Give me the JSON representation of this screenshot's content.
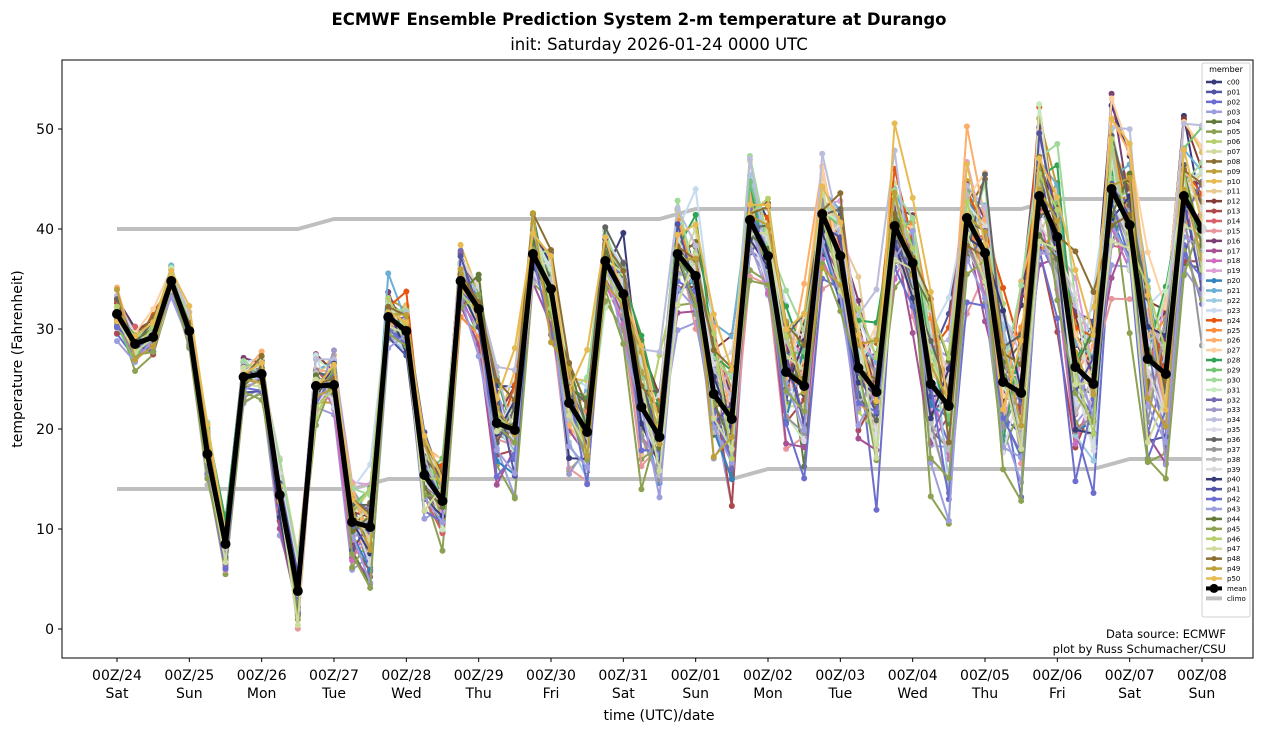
{
  "chart_data": {
    "type": "line",
    "title": "ECMWF Ensemble Prediction System 2-m temperature at Durango",
    "subtitle": "init: Saturday 2026-01-24 0000 UTC",
    "xlabel": "time (UTC)/date",
    "ylabel": "temperature (Fahrenheit)",
    "ylim": [
      -3,
      57
    ],
    "yticks": [
      0,
      10,
      20,
      30,
      40,
      50
    ],
    "xlim_hours": [
      -36,
      360
    ],
    "xticks": [
      {
        "hour": 0,
        "line1": "00Z/24",
        "line2": "Sat"
      },
      {
        "hour": 24,
        "line1": "00Z/25",
        "line2": "Sun"
      },
      {
        "hour": 48,
        "line1": "00Z/26",
        "line2": "Mon"
      },
      {
        "hour": 72,
        "line1": "00Z/27",
        "line2": "Tue"
      },
      {
        "hour": 96,
        "line1": "00Z/28",
        "line2": "Wed"
      },
      {
        "hour": 120,
        "line1": "00Z/29",
        "line2": "Thu"
      },
      {
        "hour": 144,
        "line1": "00Z/30",
        "line2": "Fri"
      },
      {
        "hour": 168,
        "line1": "00Z/31",
        "line2": "Sat"
      },
      {
        "hour": 192,
        "line1": "00Z/01",
        "line2": "Sun"
      },
      {
        "hour": 216,
        "line1": "00Z/02",
        "line2": "Mon"
      },
      {
        "hour": 240,
        "line1": "00Z/03",
        "line2": "Tue"
      },
      {
        "hour": 264,
        "line1": "00Z/04",
        "line2": "Wed"
      },
      {
        "hour": 288,
        "line1": "00Z/05",
        "line2": "Thu"
      },
      {
        "hour": 312,
        "line1": "00Z/06",
        "line2": "Fri"
      },
      {
        "hour": 336,
        "line1": "00Z/07",
        "line2": "Sat"
      },
      {
        "hour": 360,
        "line1": "00Z/08",
        "line2": "Sun"
      }
    ],
    "time_step_hours": 6,
    "mean": [
      31.5,
      28.5,
      29.2,
      34.8,
      29.8,
      17.5,
      8.5,
      25.2,
      25.5,
      13.4,
      3.8,
      24.3,
      24.4,
      10.7,
      10.2,
      31.2,
      29.8,
      15.4,
      12.8,
      34.8,
      32.0,
      20.6,
      19.9,
      37.5,
      34.0,
      22.6,
      19.7,
      36.8,
      33.5,
      22.2,
      19.2,
      37.5,
      35.3,
      23.5,
      21.0,
      40.9,
      37.3,
      25.7,
      24.3,
      41.5,
      37.3,
      26.1,
      23.7,
      40.3,
      36.6,
      24.5,
      22.3,
      41.1,
      37.6,
      24.7,
      23.6,
      43.3,
      39.2,
      26.2,
      24.5,
      44.0,
      40.4,
      27.0,
      25.5,
      43.3,
      40.0
    ],
    "spread": [
      1.4,
      1.2,
      1.2,
      0.8,
      1.2,
      2.0,
      1.5,
      1.2,
      1.2,
      1.8,
      2.2,
      2.0,
      2.0,
      3.0,
      3.2,
      1.8,
      1.8,
      2.4,
      2.6,
      2.2,
      2.3,
      3.0,
      3.4,
      2.5,
      2.6,
      3.4,
      3.6,
      2.8,
      2.8,
      4.0,
      4.2,
      3.0,
      3.2,
      4.4,
      4.6,
      3.2,
      3.2,
      4.6,
      4.8,
      3.4,
      3.6,
      4.8,
      5.0,
      4.0,
      4.0,
      5.2,
      5.4,
      4.2,
      4.4,
      5.6,
      5.8,
      4.6,
      4.6,
      6.0,
      6.0,
      4.8,
      5.0,
      6.0,
      6.2,
      5.2,
      5.2
    ],
    "climo_high": [
      40,
      40,
      40,
      40,
      40,
      40,
      40,
      40,
      40,
      40,
      40,
      40.5,
      41,
      41,
      41,
      41,
      41,
      41,
      41,
      41,
      41,
      41,
      41,
      41,
      41,
      41,
      41,
      41,
      41,
      41,
      41,
      41.5,
      42,
      42,
      42,
      42,
      42,
      42,
      42,
      42,
      42,
      42,
      42,
      42,
      42,
      42,
      42,
      42,
      42,
      42,
      42,
      42.5,
      43,
      43,
      43,
      43,
      43,
      43,
      43,
      43,
      43
    ],
    "climo_low": [
      14,
      14,
      14,
      14,
      14,
      14,
      14,
      14,
      14,
      14,
      14,
      14,
      14,
      14,
      14.5,
      15,
      15,
      15,
      15,
      15,
      15,
      15,
      15,
      15,
      15,
      15,
      15,
      15,
      15,
      15,
      15,
      15,
      15,
      15,
      15,
      15.5,
      16,
      16,
      16,
      16,
      16,
      16,
      16,
      16,
      16,
      16,
      16,
      16,
      16,
      16,
      16,
      16,
      16,
      16,
      16,
      16.5,
      17,
      17,
      17,
      17,
      17
    ],
    "legend": {
      "title": "member",
      "placement": "right",
      "entries": [
        {
          "name": "c00",
          "color": "#393b79"
        },
        {
          "name": "p01",
          "color": "#5254a3"
        },
        {
          "name": "p02",
          "color": "#6b6ecf"
        },
        {
          "name": "p03",
          "color": "#9c9ede"
        },
        {
          "name": "p04",
          "color": "#637939"
        },
        {
          "name": "p05",
          "color": "#8ca252"
        },
        {
          "name": "p06",
          "color": "#b5cf6b"
        },
        {
          "name": "p07",
          "color": "#cedb9c"
        },
        {
          "name": "p08",
          "color": "#8c6d31"
        },
        {
          "name": "p09",
          "color": "#bd9e39"
        },
        {
          "name": "p10",
          "color": "#e7ba52"
        },
        {
          "name": "p11",
          "color": "#e7cb94"
        },
        {
          "name": "p12",
          "color": "#843c39"
        },
        {
          "name": "p13",
          "color": "#ad494a"
        },
        {
          "name": "p14",
          "color": "#d6616b"
        },
        {
          "name": "p15",
          "color": "#e7969c"
        },
        {
          "name": "p16",
          "color": "#7b4173"
        },
        {
          "name": "p17",
          "color": "#a55194"
        },
        {
          "name": "p18",
          "color": "#ce6dbd"
        },
        {
          "name": "p19",
          "color": "#de9ed6"
        },
        {
          "name": "p20",
          "color": "#3182bd"
        },
        {
          "name": "p21",
          "color": "#6baed6"
        },
        {
          "name": "p22",
          "color": "#9ecae1"
        },
        {
          "name": "p23",
          "color": "#c6dbef"
        },
        {
          "name": "p24",
          "color": "#e6550d"
        },
        {
          "name": "p25",
          "color": "#fd8d3c"
        },
        {
          "name": "p26",
          "color": "#fdae6b"
        },
        {
          "name": "p27",
          "color": "#fdd0a2"
        },
        {
          "name": "p28",
          "color": "#31a354"
        },
        {
          "name": "p29",
          "color": "#74c476"
        },
        {
          "name": "p30",
          "color": "#a1d99b"
        },
        {
          "name": "p31",
          "color": "#c7e9c0"
        },
        {
          "name": "p32",
          "color": "#756bb1"
        },
        {
          "name": "p33",
          "color": "#9e9ac8"
        },
        {
          "name": "p34",
          "color": "#bcbddc"
        },
        {
          "name": "p35",
          "color": "#dadaeb"
        },
        {
          "name": "p36",
          "color": "#636363"
        },
        {
          "name": "p37",
          "color": "#969696"
        },
        {
          "name": "p38",
          "color": "#bdbdbd"
        },
        {
          "name": "p39",
          "color": "#d9d9d9"
        },
        {
          "name": "p40",
          "color": "#393b79"
        },
        {
          "name": "p41",
          "color": "#5254a3"
        },
        {
          "name": "p42",
          "color": "#6b6ecf"
        },
        {
          "name": "p43",
          "color": "#9c9ede"
        },
        {
          "name": "p44",
          "color": "#637939"
        },
        {
          "name": "p45",
          "color": "#8ca252"
        },
        {
          "name": "p46",
          "color": "#b5cf6b"
        },
        {
          "name": "p47",
          "color": "#cedb9c"
        },
        {
          "name": "p48",
          "color": "#8c6d31"
        },
        {
          "name": "p49",
          "color": "#bd9e39"
        },
        {
          "name": "p50",
          "color": "#e7ba52"
        },
        {
          "name": "mean",
          "color": "#000000"
        },
        {
          "name": "climo",
          "color": "#bfbfbf"
        }
      ]
    },
    "credit_line1": "Data source: ECMWF",
    "credit_line2": "plot by Russ Schumacher/CSU"
  }
}
